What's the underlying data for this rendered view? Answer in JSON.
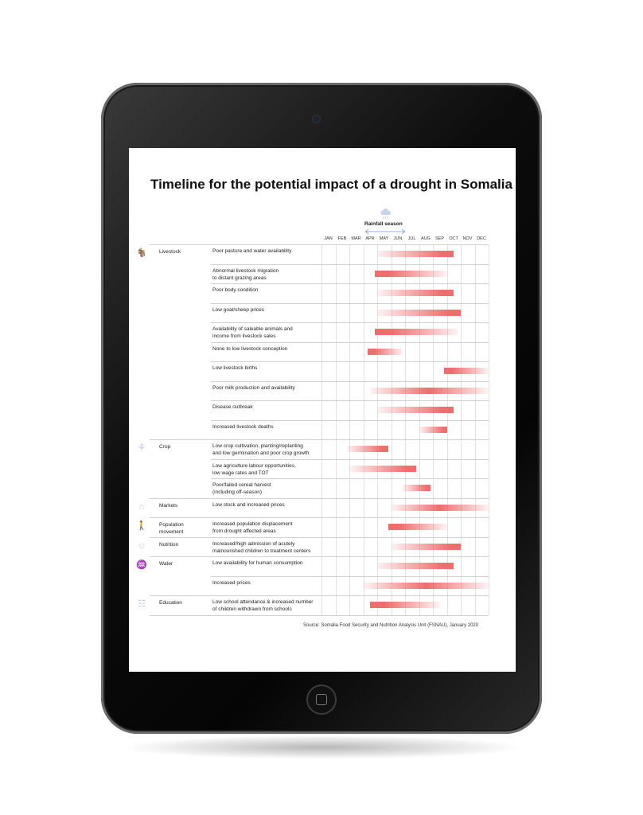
{
  "chart_data": {
    "type": "gantt",
    "title": "Timeline for the potential impact of a drought in Somalia",
    "rainfall_label": "Rainfall season",
    "rainfall_months": [
      "APR",
      "JUN"
    ],
    "months": [
      "JAN",
      "FEB",
      "MAR",
      "APR",
      "MAY",
      "JUN",
      "JUL",
      "AUG",
      "SEP",
      "OCT",
      "NOV",
      "DEC"
    ],
    "bar_color": "#ee6e6e",
    "source": "Source: Somalia Food Security and Nutrition Analysis Unit (FSNAU), January 2020",
    "categories": [
      {
        "name": "Livestock",
        "icon": "goat-icon",
        "rows": [
          {
            "label": "Poor pasture and water availability",
            "start": 4.0,
            "end": 9.5,
            "fade": "left"
          },
          {
            "label": "Abnormal livestock migration\nto distant grazing areas",
            "start": 3.8,
            "end": 9.0,
            "fade": "right"
          },
          {
            "label": "Poor body condition",
            "start": 4.0,
            "end": 9.5,
            "fade": "left"
          },
          {
            "label": "Low goat/sheep prices",
            "start": 4.0,
            "end": 10.0,
            "fade": "left"
          },
          {
            "label": "Availability of saleable animals and\nincome from livestock sales",
            "start": 3.8,
            "end": 9.8,
            "fade": "right"
          },
          {
            "label": "None to low livestock conception",
            "start": 3.3,
            "end": 5.8,
            "fade": "right"
          },
          {
            "label": "Low livestock births",
            "start": 8.8,
            "end": 12.0,
            "fade": "right"
          },
          {
            "label": "Poor milk production and availability",
            "start": 3.5,
            "end": 12.0,
            "fade": "both"
          },
          {
            "label": "Disease outbreak",
            "start": 4.0,
            "end": 9.5,
            "fade": "left"
          },
          {
            "label": "Increased livestock deaths",
            "start": 7.0,
            "end": 9.0,
            "fade": "left"
          }
        ]
      },
      {
        "name": "Crop",
        "icon": "crop-icon",
        "rows": [
          {
            "label": "Low crop cultivation, planting/replanting\nand low germination and poor crop growth",
            "start": 1.8,
            "end": 4.8,
            "fade": "left"
          },
          {
            "label": "Low agriculture labour opportunities,\nlow wage rates and TOT",
            "start": 2.0,
            "end": 6.8,
            "fade": "left"
          },
          {
            "label": "Poor/failed cereal harvest\n(including off-season)",
            "start": 5.8,
            "end": 7.8,
            "fade": "left"
          }
        ]
      },
      {
        "name": "Markets",
        "icon": "market-icon",
        "rows": [
          {
            "label": "Low stock and increased prices",
            "start": 5.0,
            "end": 12.0,
            "fade": "both"
          }
        ]
      },
      {
        "name": "Population\nmovement",
        "icon": "walking-person-icon",
        "rows": [
          {
            "label": "Increased population displacement\nfrom drought affected areas",
            "start": 4.8,
            "end": 9.0,
            "fade": "right"
          }
        ]
      },
      {
        "name": "Nutrition",
        "icon": "mother-child-icon",
        "rows": [
          {
            "label": "Increased/high admission of acutely\nmalnourished children to treatment centers",
            "start": 5.0,
            "end": 10.0,
            "fade": "left"
          }
        ]
      },
      {
        "name": "Water",
        "icon": "water-tap-icon",
        "rows": [
          {
            "label": "Low availability for human consumption",
            "start": 4.0,
            "end": 9.5,
            "fade": "left"
          },
          {
            "label": "Increased prices",
            "start": 3.0,
            "end": 12.0,
            "fade": "both"
          }
        ]
      },
      {
        "name": "Education",
        "icon": "school-book-icon",
        "rows": [
          {
            "label": "Low school attendance & increased number\nof children withdrawn from schools",
            "start": 3.5,
            "end": 8.5,
            "fade": "right"
          }
        ]
      }
    ]
  }
}
